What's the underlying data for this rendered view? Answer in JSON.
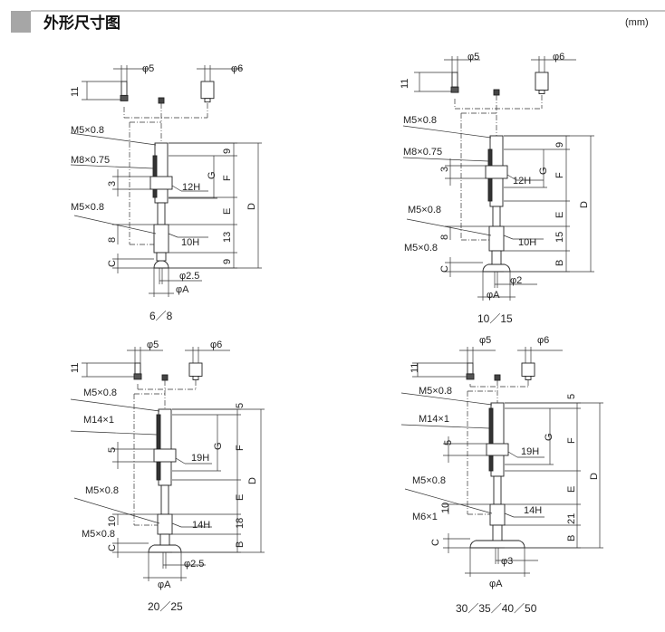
{
  "header": {
    "title": "外形尺寸图",
    "unit": "(mm)",
    "accent": "#a6a6a6"
  },
  "panels": [
    {
      "caption": "6／8",
      "phi5": "φ5",
      "phi6": "φ6",
      "h11": "11",
      "thread_top": "M5×0.8",
      "thread_body": "M8×0.75",
      "nut_t": "3",
      "nut": "12H",
      "thread_low": "M5×0.8",
      "low_len": "8",
      "hex_low": "10H",
      "c": "C",
      "bore": "φ2.5",
      "pad": "φA",
      "d_top": "9",
      "g": "G",
      "f": "F",
      "e": "E",
      "d_hex": "13",
      "d_bot": "9",
      "d": "D"
    },
    {
      "caption": "10／15",
      "phi5": "φ5",
      "phi6": "φ6",
      "h11": "11",
      "thread_top": "M5×0.8",
      "thread_body": "M8×0.75",
      "nut_t": "3",
      "nut": "12H",
      "thread_low": "M5×0.8",
      "thread_low2": "M5×0.8",
      "low_len": "8",
      "hex_low": "10H",
      "c": "C",
      "bore": "φ2",
      "pad": "φA",
      "d_top": "9",
      "g": "G",
      "f": "F",
      "e": "E",
      "d_hex": "15",
      "d_bot": "B",
      "d": "D"
    },
    {
      "caption": "20／25",
      "phi5": "φ5",
      "phi6": "φ6",
      "h11": "11",
      "thread_top": "M5×0.8",
      "thread_body": "M14×1",
      "nut_t": "5",
      "nut": "19H",
      "thread_low": "M5×0.8",
      "thread_low2": "M5×0.8",
      "low_len": "10",
      "hex_low": "14H",
      "c": "C",
      "bore": "φ2.5",
      "pad": "φA",
      "d_top": "5",
      "g": "G",
      "f": "F",
      "e": "E",
      "d_hex": "18",
      "d_bot": "B",
      "d": "D"
    },
    {
      "caption": "30／35／40／50",
      "phi5": "φ5",
      "phi6": "φ6",
      "h11": "11",
      "thread_top": "M5×0.8",
      "thread_body": "M14×1",
      "nut_t": "5",
      "nut": "19H",
      "thread_low": "M5×0.8",
      "thread_low2": "M6×1",
      "low_len": "10",
      "hex_low": "14H",
      "c": "C",
      "bore": "φ3",
      "pad": "φA",
      "d_top": "5",
      "g": "G",
      "f": "F",
      "e": "E",
      "d_hex": "21",
      "d_bot": "B",
      "d": "D"
    }
  ]
}
